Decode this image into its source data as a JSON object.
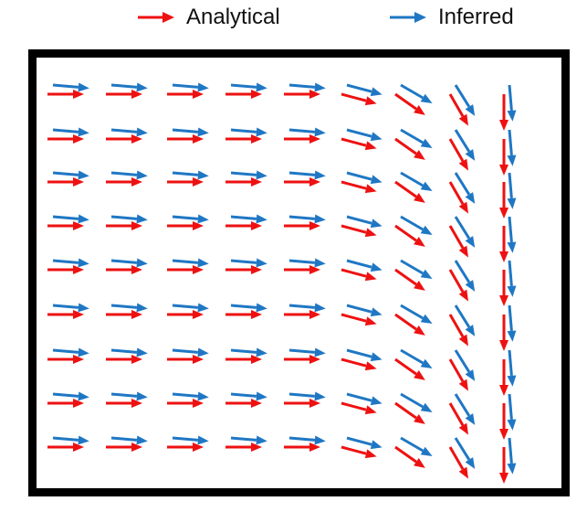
{
  "legend": {
    "analytical": {
      "label": "Analytical",
      "color": "#ee1111"
    },
    "inferred": {
      "label": "Inferred",
      "color": "#1f77c4"
    }
  },
  "chart_data": {
    "type": "quiver",
    "rows": 9,
    "cols": 9,
    "series": [
      {
        "name": "Analytical",
        "color": "#ee1111",
        "angles_deg_by_column": [
          0,
          0,
          0,
          0,
          0,
          15,
          35,
          60,
          90
        ]
      },
      {
        "name": "Inferred",
        "color": "#1f77c4",
        "angles_deg_by_column": [
          5,
          5,
          5,
          5,
          5,
          15,
          30,
          58,
          85
        ]
      }
    ]
  }
}
